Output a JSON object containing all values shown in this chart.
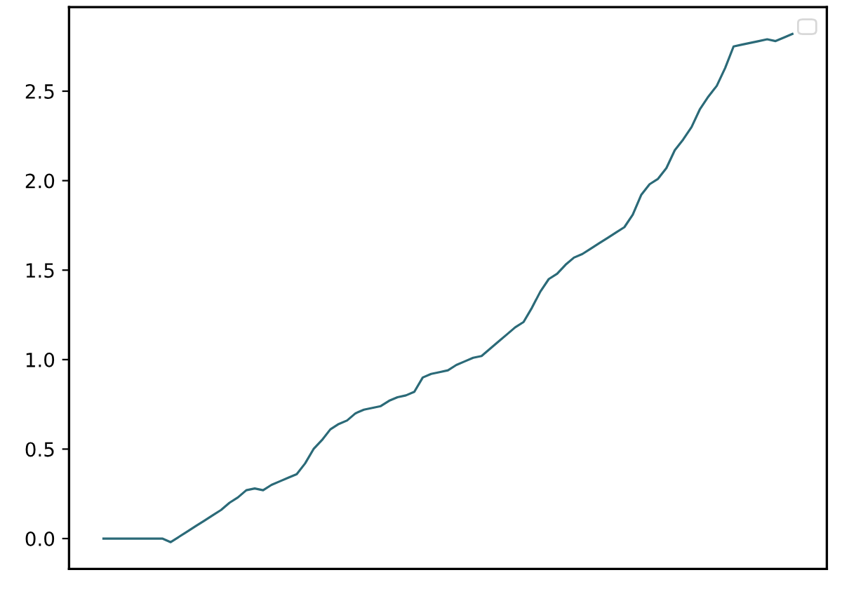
{
  "chart_data": {
    "type": "line",
    "categories": [
      null,
      null,
      null,
      null,
      null,
      null,
      null,
      null,
      null,
      null,
      null,
      null,
      null,
      null,
      null,
      null,
      null,
      null,
      null,
      null,
      null,
      null,
      null,
      null,
      null,
      null,
      null,
      null,
      null,
      null,
      null,
      null,
      null,
      null,
      null,
      null,
      null,
      null,
      null,
      null,
      null,
      null,
      null,
      null,
      null,
      null,
      null,
      null,
      null,
      null,
      null,
      null,
      null,
      null,
      null,
      null,
      null,
      null,
      null,
      null,
      null,
      null,
      null,
      null,
      null,
      null,
      null,
      null,
      null,
      null,
      null,
      null,
      null,
      null,
      null,
      null,
      null,
      null,
      null,
      null,
      null,
      null,
      null
    ],
    "series": [
      {
        "color": "#2b6a78",
        "values": [
          0,
          0,
          0,
          0,
          0,
          0,
          0,
          0,
          -0.02,
          0.01,
          0.04,
          0.07,
          0.1,
          0.13,
          0.16,
          0.2,
          0.23,
          0.27,
          0.28,
          0.27,
          0.3,
          0.32,
          0.34,
          0.36,
          0.42,
          0.5,
          0.55,
          0.61,
          0.64,
          0.66,
          0.7,
          0.72,
          0.73,
          0.74,
          0.77,
          0.79,
          0.8,
          0.82,
          0.9,
          0.92,
          0.93,
          0.94,
          0.97,
          0.99,
          1.01,
          1.02,
          1.06,
          1.1,
          1.14,
          1.18,
          1.21,
          1.29,
          1.38,
          1.45,
          1.48,
          1.53,
          1.57,
          1.59,
          1.62,
          1.65,
          1.68,
          1.71,
          1.74,
          1.81,
          1.92,
          1.98,
          2.01,
          2.07,
          2.17,
          2.23,
          2.3,
          2.4,
          2.47,
          2.53,
          2.63,
          2.75,
          2.76,
          2.77,
          2.78,
          2.79,
          2.78,
          2.8,
          2.82
        ]
      }
    ],
    "ylim": [
      -0.17,
      2.97
    ],
    "yticks": [
      {
        "value": 0,
        "label": "0.0"
      },
      0.5,
      {
        "value": 1,
        "label": "1.0"
      },
      1.5,
      {
        "value": 2,
        "label": "2.0"
      },
      2.5
    ],
    "tick_labels": "y"
  }
}
